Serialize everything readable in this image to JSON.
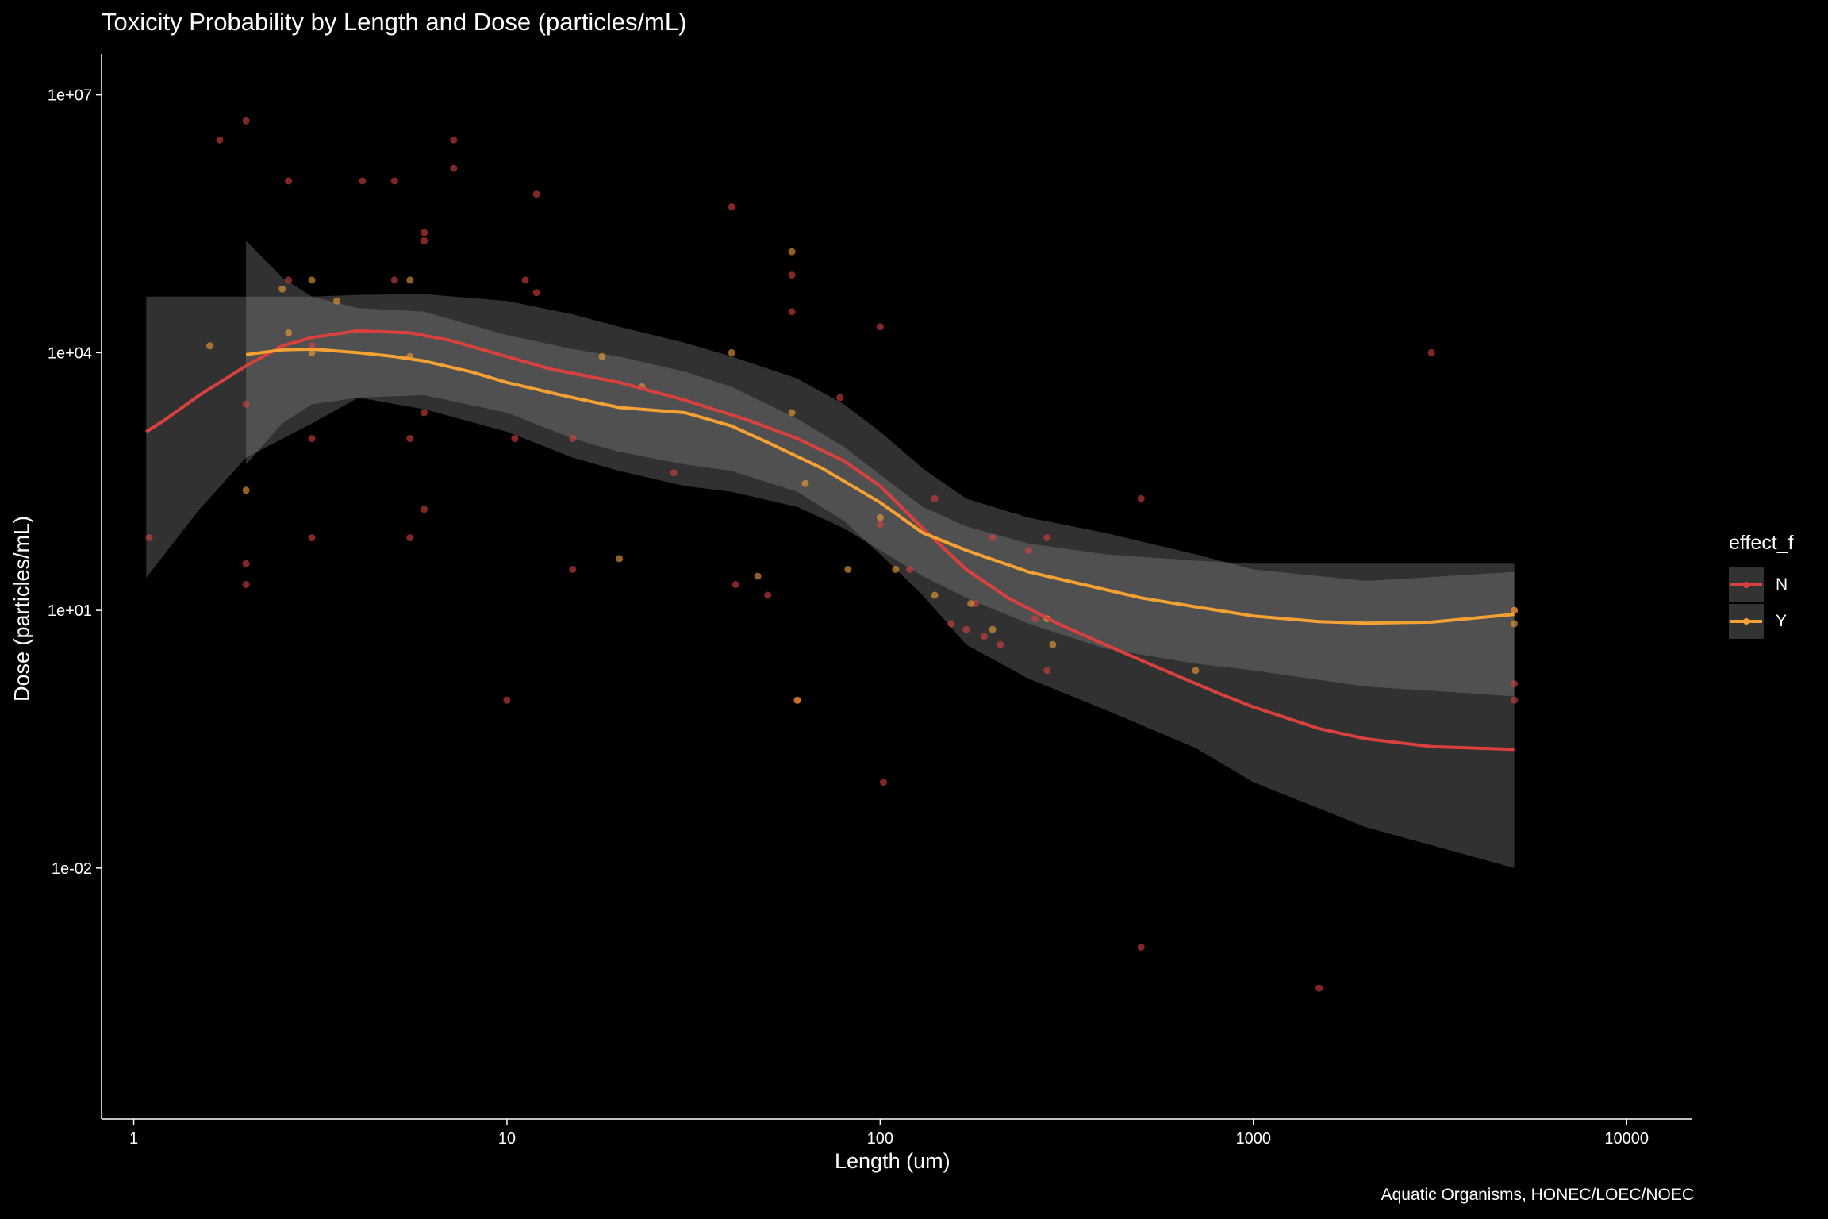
{
  "title": "Toxicity Probability by Length and Dose (particles/mL)",
  "caption": "Aquatic Organisms, HONEC/LOEC/NOEC",
  "chart_data": {
    "type": "scatter",
    "title": "Toxicity Probability by Length and Dose (particles/mL)",
    "xlabel": "Length (um)",
    "ylabel": "Dose (particles/mL)",
    "xscale": "log10",
    "yscale": "log10",
    "xlim": [
      0.82,
      15000
    ],
    "ylim": [
      1.2e-05,
      30000000
    ],
    "x_ticks": [
      1,
      10,
      100,
      1000,
      10000
    ],
    "x_tick_labels": [
      "1",
      "10",
      "100",
      "1000",
      "10000"
    ],
    "y_ticks": [
      0.01,
      10,
      10000,
      10000000
    ],
    "y_tick_labels": [
      "1e-02",
      "1e+01",
      "1e+04",
      "1e+07"
    ],
    "grid": false,
    "legend": {
      "title": "effect_f",
      "position": "right",
      "entries": [
        "N",
        "Y"
      ]
    },
    "colors": {
      "N": "#d9413f",
      "Y": "#f5a133",
      "ribbon": "#8c8c8c"
    },
    "series": [
      {
        "name": "N",
        "points": [
          [
            1.1,
            70
          ],
          [
            1.7,
            3000000
          ],
          [
            2,
            5000000
          ],
          [
            2,
            2500
          ],
          [
            2,
            35
          ],
          [
            2,
            20
          ],
          [
            2.6,
            1000000
          ],
          [
            2.6,
            70000
          ],
          [
            3,
            1000
          ],
          [
            3,
            70
          ],
          [
            3,
            12000
          ],
          [
            4.1,
            1000000
          ],
          [
            5,
            1000000
          ],
          [
            5,
            70000
          ],
          [
            5.5,
            70
          ],
          [
            5.5,
            1000
          ],
          [
            6,
            200000
          ],
          [
            6,
            250000
          ],
          [
            6,
            2000
          ],
          [
            6,
            150
          ],
          [
            7.2,
            3000000
          ],
          [
            7.2,
            1400000
          ],
          [
            10,
            0.9
          ],
          [
            10.5,
            1000
          ],
          [
            11.2,
            70000
          ],
          [
            12,
            700000
          ],
          [
            12,
            50000
          ],
          [
            15,
            30
          ],
          [
            15,
            1000
          ],
          [
            28,
            400
          ],
          [
            40,
            500000
          ],
          [
            41,
            20
          ],
          [
            50,
            15
          ],
          [
            58,
            80000
          ],
          [
            58,
            30000
          ],
          [
            60,
            0.9
          ],
          [
            78,
            3000
          ],
          [
            100,
            20000
          ],
          [
            102,
            0.1
          ],
          [
            100,
            100
          ],
          [
            120,
            30
          ],
          [
            140,
            200
          ],
          [
            155,
            7
          ],
          [
            170,
            6
          ],
          [
            180,
            12
          ],
          [
            190,
            5
          ],
          [
            200,
            70
          ],
          [
            210,
            4
          ],
          [
            250,
            50
          ],
          [
            260,
            8
          ],
          [
            280,
            70
          ],
          [
            280,
            2
          ],
          [
            500,
            200
          ],
          [
            500,
            0.0012
          ],
          [
            1500,
            0.0004
          ],
          [
            3000,
            10000
          ],
          [
            5000,
            0.9
          ],
          [
            5000,
            1.4
          ],
          [
            5000,
            10
          ]
        ]
      },
      {
        "name": "Y",
        "points": [
          [
            1.6,
            12000
          ],
          [
            2,
            250
          ],
          [
            2.5,
            55000
          ],
          [
            2.6,
            17000
          ],
          [
            3,
            70000
          ],
          [
            3,
            10000
          ],
          [
            3.5,
            40000
          ],
          [
            5.5,
            70000
          ],
          [
            5.5,
            9000
          ],
          [
            18,
            9000
          ],
          [
            20,
            40
          ],
          [
            23,
            4000
          ],
          [
            47,
            25
          ],
          [
            40,
            10000
          ],
          [
            58,
            150000
          ],
          [
            58,
            2000
          ],
          [
            60,
            0.9
          ],
          [
            63,
            300
          ],
          [
            82,
            30
          ],
          [
            100,
            120
          ],
          [
            110,
            30
          ],
          [
            140,
            15
          ],
          [
            175,
            12
          ],
          [
            200,
            6
          ],
          [
            280,
            8
          ],
          [
            290,
            4
          ],
          [
            700,
            2
          ],
          [
            5000,
            10
          ],
          [
            5000,
            7
          ]
        ]
      }
    ],
    "smooth_N": [
      [
        1.08,
        1200
      ],
      [
        1.2,
        1600
      ],
      [
        1.5,
        3200
      ],
      [
        2,
        7000
      ],
      [
        2.5,
        12000
      ],
      [
        3,
        15000
      ],
      [
        4,
        18000
      ],
      [
        5.5,
        17000
      ],
      [
        7,
        14000
      ],
      [
        10,
        9000
      ],
      [
        13,
        6500
      ],
      [
        20,
        4500
      ],
      [
        30,
        2800
      ],
      [
        45,
        1600
      ],
      [
        60,
        1000
      ],
      [
        80,
        550
      ],
      [
        100,
        280
      ],
      [
        130,
        90
      ],
      [
        170,
        30
      ],
      [
        220,
        14
      ],
      [
        300,
        7
      ],
      [
        400,
        4
      ],
      [
        550,
        2.2
      ],
      [
        800,
        1.1
      ],
      [
        1000,
        0.75
      ],
      [
        1500,
        0.42
      ],
      [
        2000,
        0.32
      ],
      [
        3000,
        0.26
      ],
      [
        5000,
        0.24
      ]
    ],
    "smooth_Y": [
      [
        2,
        9500
      ],
      [
        2.5,
        10800
      ],
      [
        3,
        11000
      ],
      [
        4,
        10000
      ],
      [
        5,
        9000
      ],
      [
        6,
        8000
      ],
      [
        8,
        6000
      ],
      [
        10,
        4500
      ],
      [
        14,
        3200
      ],
      [
        20,
        2300
      ],
      [
        30,
        2000
      ],
      [
        40,
        1400
      ],
      [
        50,
        900
      ],
      [
        70,
        450
      ],
      [
        100,
        180
      ],
      [
        130,
        80
      ],
      [
        170,
        50
      ],
      [
        250,
        28
      ],
      [
        350,
        20
      ],
      [
        500,
        14
      ],
      [
        700,
        11
      ],
      [
        1000,
        8.6
      ],
      [
        1500,
        7.4
      ],
      [
        2000,
        7.1
      ],
      [
        3000,
        7.3
      ],
      [
        4000,
        8.2
      ],
      [
        5000,
        9
      ]
    ],
    "ribbon_N": {
      "x": [
        1.08,
        1.5,
        2,
        3,
        4,
        6,
        10,
        15,
        20,
        30,
        40,
        60,
        80,
        100,
        130,
        170,
        250,
        400,
        700,
        1000,
        2000,
        5000
      ],
      "upper": [
        45000,
        45000,
        45000,
        45000,
        47000,
        48000,
        40000,
        28000,
        20000,
        13000,
        9000,
        5000,
        2500,
        1200,
        450,
        200,
        120,
        80,
        45,
        30,
        22,
        28
      ],
      "lower": [
        24,
        150,
        600,
        1500,
        3000,
        3200,
        2000,
        1000,
        700,
        500,
        420,
        240,
        110,
        45,
        15,
        4,
        1.6,
        0.7,
        0.25,
        0.1,
        0.03,
        0.01
      ]
    },
    "ribbon_Y": {
      "x": [
        2,
        2.5,
        3,
        4,
        6,
        10,
        15,
        20,
        30,
        40,
        60,
        80,
        100,
        130,
        170,
        250,
        400,
        700,
        1000,
        2000,
        5000
      ],
      "upper": [
        200000,
        75000,
        45000,
        33000,
        30000,
        16000,
        11000,
        9000,
        6000,
        4000,
        1700,
        800,
        380,
        160,
        95,
        60,
        45,
        38,
        35,
        35,
        35
      ],
      "lower": [
        500,
        1500,
        2500,
        3000,
        2200,
        1200,
        600,
        420,
        280,
        240,
        160,
        90,
        50,
        25,
        14,
        7,
        3.6,
        2.4,
        2,
        1.3,
        1
      ]
    }
  }
}
